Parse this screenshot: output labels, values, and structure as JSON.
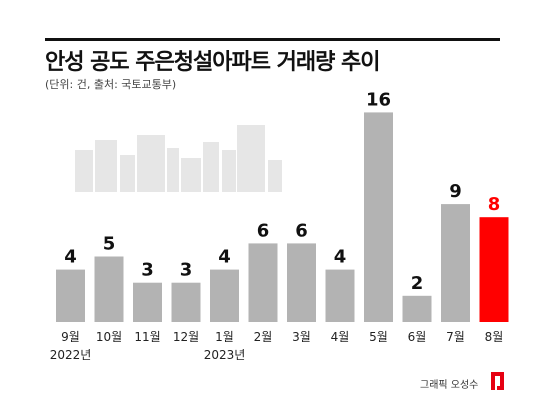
{
  "header": {
    "title": "안성 공도 주은청설아파트 거래량 추이",
    "subtitle": "(단위: 건, 출처: 국토교통부)"
  },
  "footer": {
    "credit": "그래픽 오성수"
  },
  "colors": {
    "bar": "#b3b3b3",
    "highlight": "#ff0000",
    "text": "#111111",
    "skyline": "#e6e6e6"
  },
  "chart_data": {
    "type": "bar",
    "categories": [
      "9월",
      "10월",
      "11월",
      "12월",
      "1월",
      "2월",
      "3월",
      "4월",
      "5월",
      "6월",
      "7월",
      "8월"
    ],
    "year_labels": [
      {
        "index": 0,
        "text": "2022년"
      },
      {
        "index": 4,
        "text": "2023년"
      }
    ],
    "values": [
      4,
      5,
      3,
      3,
      4,
      6,
      6,
      4,
      16,
      2,
      9,
      8
    ],
    "highlight_index": 11,
    "ylim": [
      0,
      16
    ],
    "grid": false,
    "title": "안성 공도 주은청설아파트 거래량 추이",
    "xlabel": "",
    "ylabel": ""
  }
}
